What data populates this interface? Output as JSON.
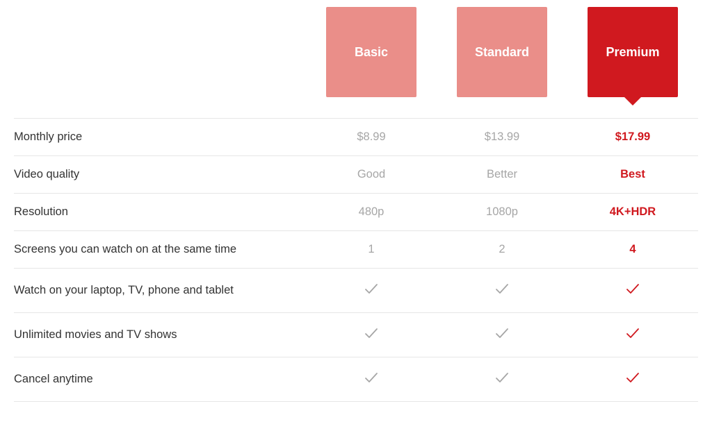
{
  "plans": [
    {
      "id": "basic",
      "label": "Basic",
      "active": false
    },
    {
      "id": "standard",
      "label": "Standard",
      "active": false
    },
    {
      "id": "premium",
      "label": "Premium",
      "active": true
    }
  ],
  "colors": {
    "inactive_box": "#ea8e89",
    "active_box": "#d0191f",
    "muted_text": "#a6a6a6",
    "highlight_text": "#d0191f",
    "label_text": "#333333",
    "divider": "#e6e6e6",
    "background": "#ffffff"
  },
  "rows": [
    {
      "label": "Monthly price",
      "type": "text",
      "values": [
        "$8.99",
        "$13.99",
        "$17.99"
      ]
    },
    {
      "label": "Video quality",
      "type": "text",
      "values": [
        "Good",
        "Better",
        "Best"
      ]
    },
    {
      "label": "Resolution",
      "type": "text",
      "values": [
        "480p",
        "1080p",
        "4K+HDR"
      ]
    },
    {
      "label": "Screens you can watch on at the same time",
      "type": "text",
      "values": [
        "1",
        "2",
        "4"
      ]
    },
    {
      "label": "Watch on your laptop, TV, phone and tablet",
      "type": "check",
      "values": [
        true,
        true,
        true
      ]
    },
    {
      "label": "Unlimited movies and TV shows",
      "type": "check",
      "values": [
        true,
        true,
        true
      ]
    },
    {
      "label": "Cancel anytime",
      "type": "check",
      "values": [
        true,
        true,
        true
      ]
    }
  ]
}
